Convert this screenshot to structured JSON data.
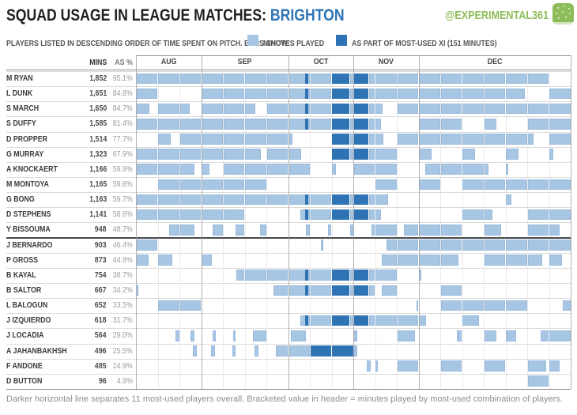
{
  "header": {
    "title_prefix": "SQUAD USAGE IN LEAGUE MATCHES: ",
    "title_team": "BRIGHTON",
    "badge_text": "@EXPERIMENTAL361"
  },
  "legend": {
    "intro": "PLAYERS LISTED IN DESCENDING ORDER OF TIME SPENT ON PITCH.  BARS SHOW:",
    "items": [
      {
        "label": "MINUTES PLAYED",
        "color_key": "bar_light"
      },
      {
        "label": "AS PART OF MOST-USED XI  (151 MINUTES)",
        "color_key": "bar_dark"
      }
    ]
  },
  "columns": {
    "mins": "MINS",
    "pct": "AS %"
  },
  "footer_note": "Darker horizontal line separates 11 most-used players overall.  Bracketed value in header = minutes played by most-used combination of players.",
  "colors": {
    "bar_light": "#a7c6e4",
    "bar_dark": "#2e74b5",
    "team_accent": "#2e74b5",
    "badge_green": "#8dbd5a",
    "grid_light": "#ececec",
    "grid_row": "#dcdcdc",
    "grid_month": "#9e9e9e",
    "separator_dark": "#4a4a4a",
    "title_dark": "#1f1f1f"
  },
  "chart_data": {
    "type": "timeline-bar",
    "title": "Squad usage in league matches: Brighton",
    "x_axis": "matches Aug-Dec (20 league matches)",
    "legend_position": "top",
    "grid": true,
    "most_used_players_count": 11,
    "most_used_xi_minutes": 151,
    "months": [
      {
        "label": "AUG",
        "cells": 3
      },
      {
        "label": "SEP",
        "cells": 4
      },
      {
        "label": "OCT",
        "cells": 3
      },
      {
        "label": "NOV",
        "cells": 3
      },
      {
        "label": "DEC",
        "cells": 7
      }
    ],
    "cell_legend": "tokens: F=full light bar, S=full light with dark XI sliver at end, X=dark 85% + light, N=dark 70% + light, D=full dark, ''=no minutes, 'l:offset,width'=light segment fractions of match cell, 'd:...'=dark segment",
    "players": [
      {
        "name": "M RYAN",
        "mins": "1,852",
        "pct": "95.1%",
        "cells": [
          "F",
          "F",
          "F",
          "F",
          "F",
          "F",
          "F",
          "S",
          "F",
          "X",
          "N",
          "F",
          "F",
          "F",
          "F",
          "F",
          "F",
          "F",
          "F",
          ""
        ]
      },
      {
        "name": "L DUNK",
        "mins": "1,651",
        "pct": "84.8%",
        "cells": [
          "F",
          "",
          "",
          "F",
          "F",
          "F",
          "F",
          "S",
          "F",
          "X",
          "N",
          "F",
          "F",
          "F",
          "F",
          "F",
          "F",
          "l:0,0.9",
          "",
          "F"
        ]
      },
      {
        "name": "S MARCH",
        "mins": "1,650",
        "pct": "84.7%",
        "cells": [
          "l:0,0.65",
          "F",
          "l:0,0.5",
          "F",
          "F",
          "l:0,0.5",
          "F",
          "S",
          "F",
          "X",
          "N",
          "l:0,0.35",
          "F",
          "F",
          "F",
          "F",
          "F",
          "F",
          "F",
          "F"
        ]
      },
      {
        "name": "S DUFFY",
        "mins": "1,585",
        "pct": "81.4%",
        "cells": [
          "F",
          "F",
          "F",
          "F",
          "F",
          "F",
          "F",
          "S",
          "F",
          "X",
          "N",
          "l:0,0.3",
          "",
          "F",
          "F",
          "",
          "l:0,0.6",
          "",
          "F",
          "F"
        ]
      },
      {
        "name": "D PROPPER",
        "mins": "1,514",
        "pct": "77.7%",
        "cells": [
          "",
          "l:0,0.6",
          "F",
          "F",
          "F",
          "F",
          "F",
          "l:0,0.2",
          "",
          "X",
          "N",
          "l:0,0.4",
          "F",
          "F",
          "F",
          "F",
          "F",
          "F",
          "l:0,0.3",
          "F"
        ]
      },
      {
        "name": "G MURRAY",
        "mins": "1,323",
        "pct": "67.9%",
        "cells": [
          "F",
          "F",
          "F",
          "F",
          "F",
          "l:0,0.75",
          "F",
          "l:0,0.6",
          "",
          "X",
          "N",
          "F",
          "",
          "l:0,0.6",
          "",
          "l:0,0.6",
          "",
          "l:0,0.6",
          "",
          "l:0,0.2"
        ]
      },
      {
        "name": "A KNOCKAERT",
        "mins": "1,166",
        "pct": "59.9%",
        "cells": [
          "F",
          "F",
          "l:0,0.7",
          "l:0,0.4",
          "F",
          "F",
          "F",
          "F",
          "",
          "l:0,0.2",
          "F",
          "F",
          "",
          "l:0.3,0.7",
          "F",
          "F",
          "l:0,0.25",
          "l:0,0.15",
          "",
          ""
        ]
      },
      {
        "name": "M MONTOYA",
        "mins": "1,165",
        "pct": "59.8%",
        "cells": [
          "",
          "F",
          "F",
          "F",
          "F",
          "F",
          "",
          "",
          "",
          "",
          "",
          "F",
          "",
          "F",
          "",
          "F",
          "F",
          "F",
          "F",
          "F"
        ]
      },
      {
        "name": "G BONG",
        "mins": "1,163",
        "pct": "59.7%",
        "cells": [
          "F",
          "F",
          "F",
          "F",
          "F",
          "F",
          "F",
          "S",
          "F",
          "X",
          "N",
          "l:0,0.6",
          "",
          "",
          "",
          "",
          "",
          "l:0,0.3",
          "",
          ""
        ]
      },
      {
        "name": "D STEPHENS",
        "mins": "1,141",
        "pct": "58.6%",
        "cells": [
          "F",
          "F",
          "F",
          "F",
          "F",
          "",
          "",
          "l:0.55,0.45;d:0.76,0.17",
          "F",
          "X",
          "N",
          "l:0,0.3",
          "",
          "",
          "",
          "F",
          "l:0,0.4",
          "",
          "F",
          "F"
        ]
      },
      {
        "name": "Y BISSOUMA",
        "mins": "948",
        "pct": "48.7%",
        "cells": [
          "",
          "l:0.5,0.5",
          "l:0,0.7",
          "l:0.5,0.5",
          "l:0.55,0.45",
          "l:0.7,0.3",
          "",
          "l:0.8,0.2",
          "l:0.8,0.2",
          "l:0.85,0.15",
          "l:0.8,0.2",
          "F",
          "l:0.3,0.7",
          "F",
          "F",
          "",
          "l:0,0.8",
          "",
          "F",
          "l:0,0.5"
        ]
      },
      {
        "name": "J BERNARDO",
        "mins": "903",
        "pct": "46.4%",
        "cells": [
          "F",
          "",
          "",
          "",
          "",
          "",
          "",
          "",
          "l:0.5,0.12",
          "",
          "",
          "l:0.5,0.5",
          "F",
          "F",
          "F",
          "F",
          "F",
          "F",
          "F",
          "F"
        ]
      },
      {
        "name": "P GROSS",
        "mins": "873",
        "pct": "44.8%",
        "cells": [
          "l:0,0.6",
          "l:0,0.7",
          "",
          "l:0,0.5",
          "",
          "",
          "",
          "",
          "",
          "",
          "",
          "l:0.3,0.7",
          "F",
          "F",
          "l:0,0.85",
          "",
          "F",
          "F",
          "l:0,0.7",
          "l:0,0.6"
        ]
      },
      {
        "name": "B KAYAL",
        "mins": "754",
        "pct": "38.7%",
        "cells": [
          "",
          "",
          "",
          "",
          "l:0.6,0.4",
          "F",
          "F",
          "S",
          "F",
          "X",
          "N",
          "F",
          "",
          "l:0,0.15",
          "",
          "",
          "",
          "",
          "",
          ""
        ]
      },
      {
        "name": "B SALTOR",
        "mins": "667",
        "pct": "34.2%",
        "cells": [
          "l:0,0.12",
          "",
          "",
          "",
          "",
          "",
          "l:0.3,0.7",
          "S",
          "F",
          "X",
          "N",
          "l:0.3,0.7",
          "",
          "",
          "F",
          "",
          "",
          "",
          "",
          ""
        ]
      },
      {
        "name": "L BALOGUN",
        "mins": "652",
        "pct": "33.5%",
        "cells": [
          "",
          "F",
          "F",
          "",
          "",
          "",
          "",
          "",
          "",
          "",
          "",
          "",
          "l:0.9,0.1",
          "",
          "F",
          "F",
          "F",
          "F",
          "",
          "l:0.6,0.4"
        ]
      },
      {
        "name": "J IZQUIERDO",
        "mins": "618",
        "pct": "31.7%",
        "cells": [
          "",
          "",
          "",
          "",
          "",
          "",
          "",
          "l:0.55,0.45;d:0.78,0.15",
          "F",
          "X",
          "N",
          "F",
          "F",
          "l:0,0.35",
          "",
          "l:0,0.8",
          "",
          "",
          "",
          ""
        ]
      },
      {
        "name": "J LOCADIA",
        "mins": "564",
        "pct": "29.0%",
        "cells": [
          "",
          "l:0.8,0.2",
          "l:0.5,0.2",
          "l:0.5,0.2",
          "l:0.45,0.15",
          "l:0.35,0.65",
          "",
          "l:0.1,0.75",
          "",
          "",
          "l:0,0.2",
          "",
          "l:0,0.85",
          "",
          "l:0.75,0.25",
          "",
          "l:0,0.6",
          "l:0,0.5",
          "l:0.6,0.4",
          "F"
        ]
      },
      {
        "name": "A JAHANBAKHSH",
        "mins": "496",
        "pct": "25.5%",
        "cells": [
          "",
          "",
          "l:0.6,0.2",
          "l:0.45,0.2",
          "l:0.4,0.2",
          "l:0.45,0.2",
          "l:0.4,0.6",
          "F",
          "D",
          "D",
          "l:0,0.2",
          "",
          "",
          "",
          "",
          "",
          "",
          "",
          "",
          ""
        ]
      },
      {
        "name": "F ANDONE",
        "mins": "485",
        "pct": "24.9%",
        "cells": [
          "",
          "",
          "",
          "",
          "",
          "",
          "",
          "",
          "",
          "",
          "l:0.6,0.2",
          "l:0,0.15",
          "F",
          "",
          "F",
          "",
          "F",
          "",
          "l:0,0.9",
          "l:0,0.5"
        ]
      },
      {
        "name": "D BUTTON",
        "mins": "96",
        "pct": "4.9%",
        "cells": [
          "",
          "",
          "",
          "",
          "",
          "",
          "",
          "",
          "",
          "",
          "",
          "",
          "",
          "",
          "",
          "",
          "",
          "",
          "F",
          ""
        ]
      }
    ]
  }
}
